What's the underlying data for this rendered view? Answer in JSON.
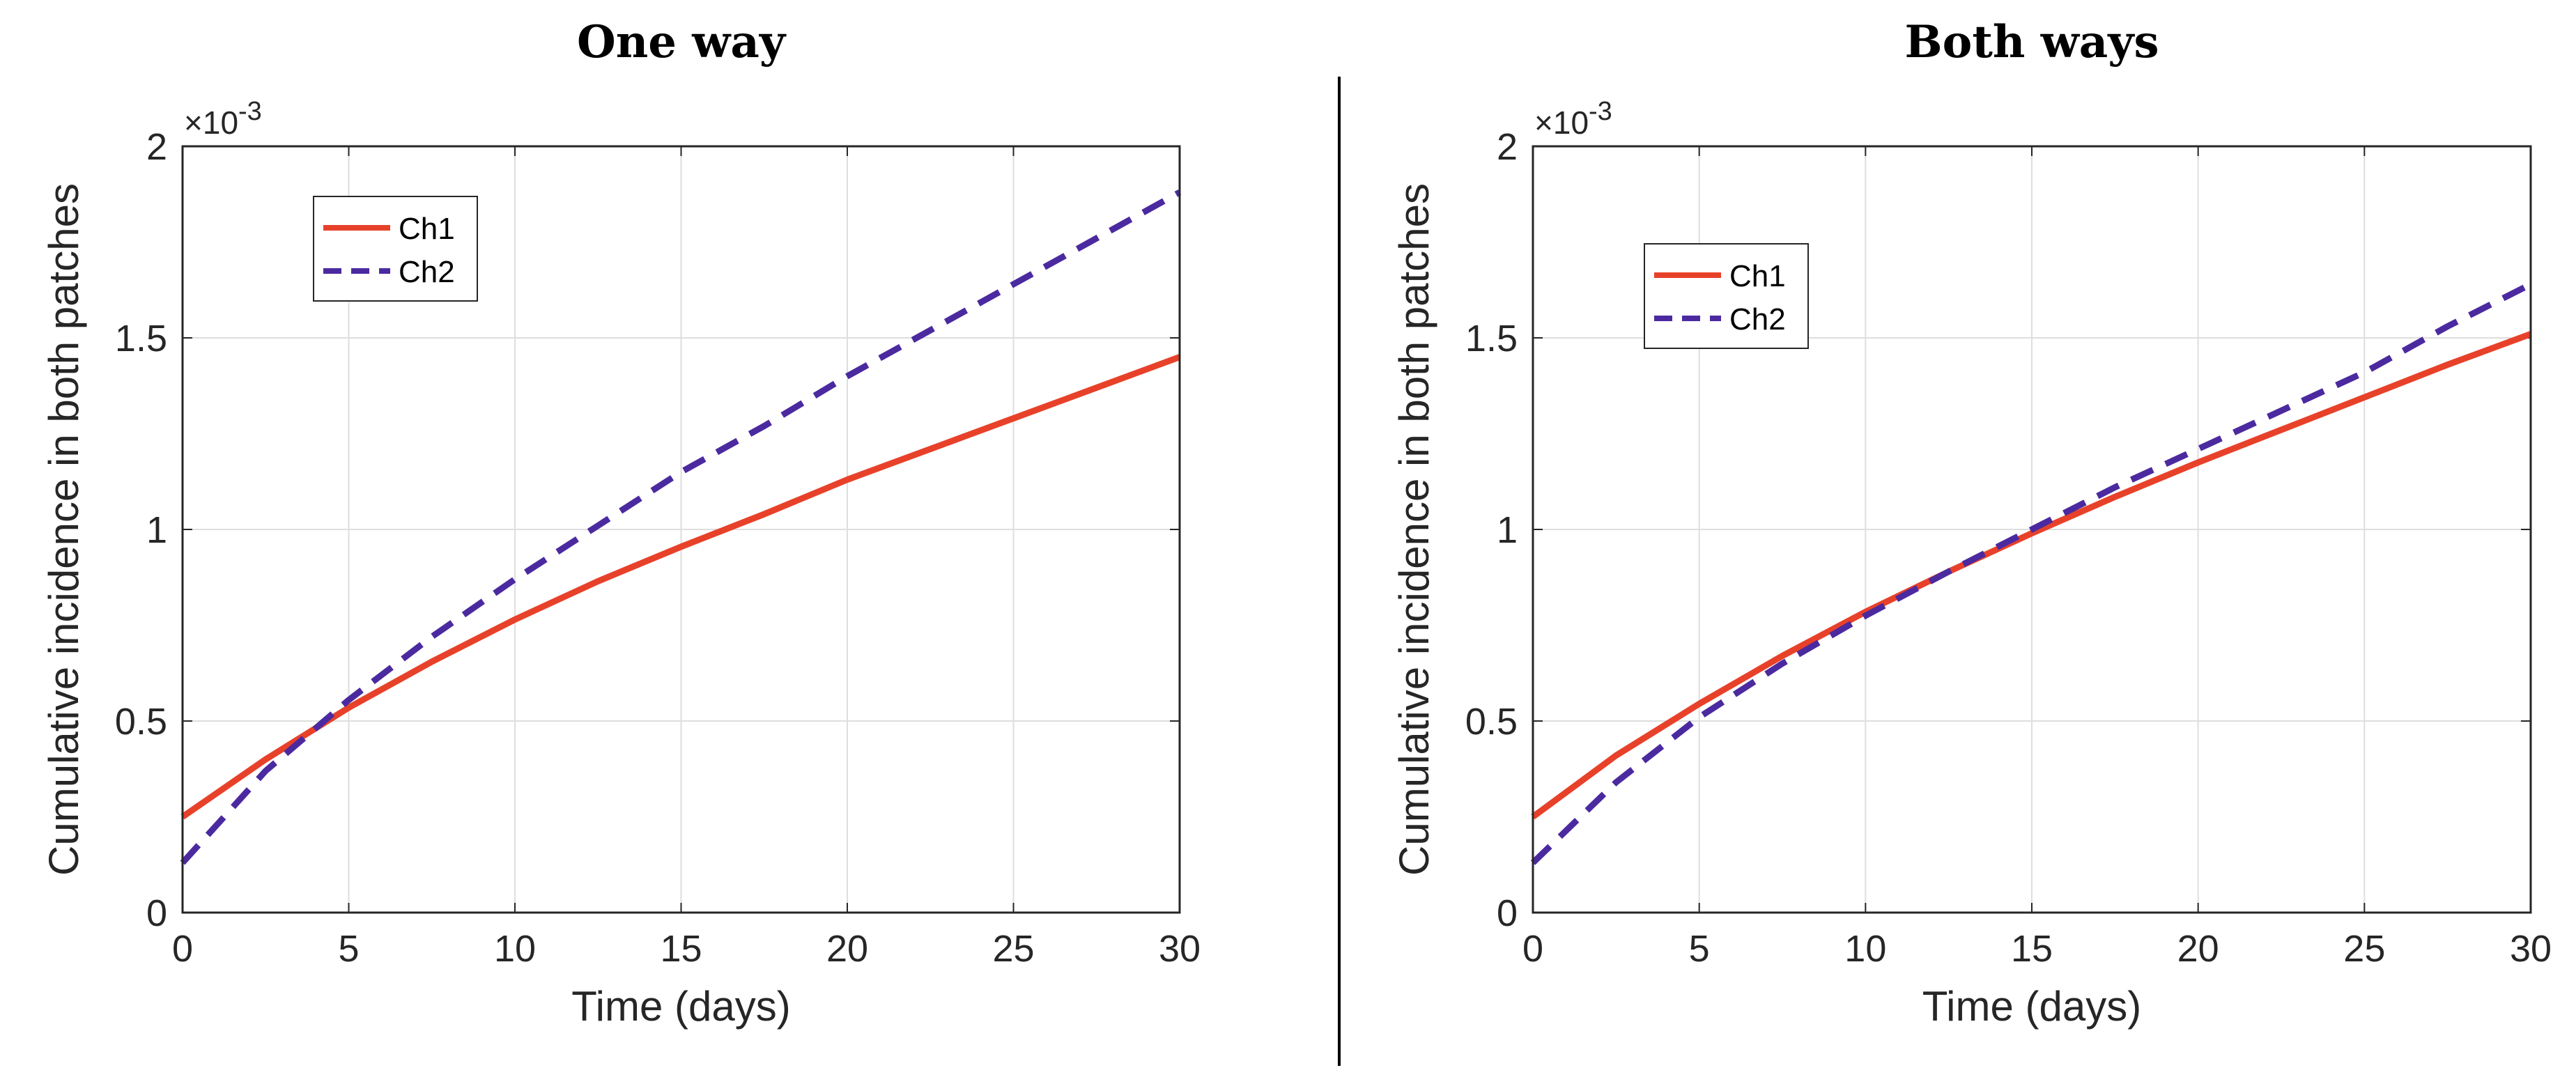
{
  "figure": {
    "divider": true
  },
  "chart_data": [
    {
      "type": "line",
      "title": "One way",
      "xlabel": "Time (days)",
      "ylabel": "Cumulative incidence in both patches",
      "y_exponent_label": "×10",
      "y_exponent": "-3",
      "xlim": [
        0,
        30
      ],
      "ylim": [
        0,
        2
      ],
      "xticks": [
        0,
        5,
        10,
        15,
        20,
        25,
        30
      ],
      "xtick_labels": [
        "0",
        "5",
        "10",
        "15",
        "20",
        "25",
        "30"
      ],
      "yticks": [
        0,
        0.5,
        1,
        1.5,
        2
      ],
      "ytick_labels": [
        "0",
        "0.5",
        "1",
        "1.5",
        "2"
      ],
      "grid": true,
      "legend_position": "top-left",
      "x": [
        0,
        2.5,
        5,
        7.5,
        10,
        12.5,
        15,
        17.5,
        20,
        22.5,
        25,
        27.5,
        30
      ],
      "series": [
        {
          "name": "Ch1",
          "style": "solid",
          "color": "#e8412a",
          "values": [
            0.25,
            0.4,
            0.535,
            0.655,
            0.765,
            0.865,
            0.955,
            1.04,
            1.13,
            1.21,
            1.29,
            1.37,
            1.45
          ]
        },
        {
          "name": "Ch2",
          "style": "dashed",
          "color": "#4b2aa0",
          "values": [
            0.13,
            0.37,
            0.555,
            0.72,
            0.87,
            1.01,
            1.15,
            1.27,
            1.4,
            1.52,
            1.64,
            1.76,
            1.88
          ]
        }
      ]
    },
    {
      "type": "line",
      "title": "Both ways",
      "xlabel": "Time (days)",
      "ylabel": "Cumulative incidence in both patches",
      "y_exponent_label": "×10",
      "y_exponent": "-3",
      "xlim": [
        0,
        30
      ],
      "ylim": [
        0,
        2
      ],
      "xticks": [
        0,
        5,
        10,
        15,
        20,
        25,
        30
      ],
      "xtick_labels": [
        "0",
        "5",
        "10",
        "15",
        "20",
        "25",
        "30"
      ],
      "yticks": [
        0,
        0.5,
        1,
        1.5,
        2
      ],
      "ytick_labels": [
        "0",
        "0.5",
        "1",
        "1.5",
        "2"
      ],
      "grid": true,
      "legend_position": "top-left",
      "x": [
        0,
        2.5,
        5,
        7.5,
        10,
        12.5,
        15,
        17.5,
        20,
        22.5,
        25,
        27.5,
        30
      ],
      "series": [
        {
          "name": "Ch1",
          "style": "solid",
          "color": "#e8412a",
          "values": [
            0.25,
            0.41,
            0.545,
            0.67,
            0.785,
            0.89,
            0.99,
            1.085,
            1.175,
            1.26,
            1.345,
            1.43,
            1.51
          ]
        },
        {
          "name": "Ch2",
          "style": "dashed",
          "color": "#4b2aa0",
          "values": [
            0.13,
            0.34,
            0.51,
            0.65,
            0.775,
            0.89,
            1.0,
            1.11,
            1.21,
            1.31,
            1.41,
            1.53,
            1.64
          ]
        }
      ]
    }
  ]
}
